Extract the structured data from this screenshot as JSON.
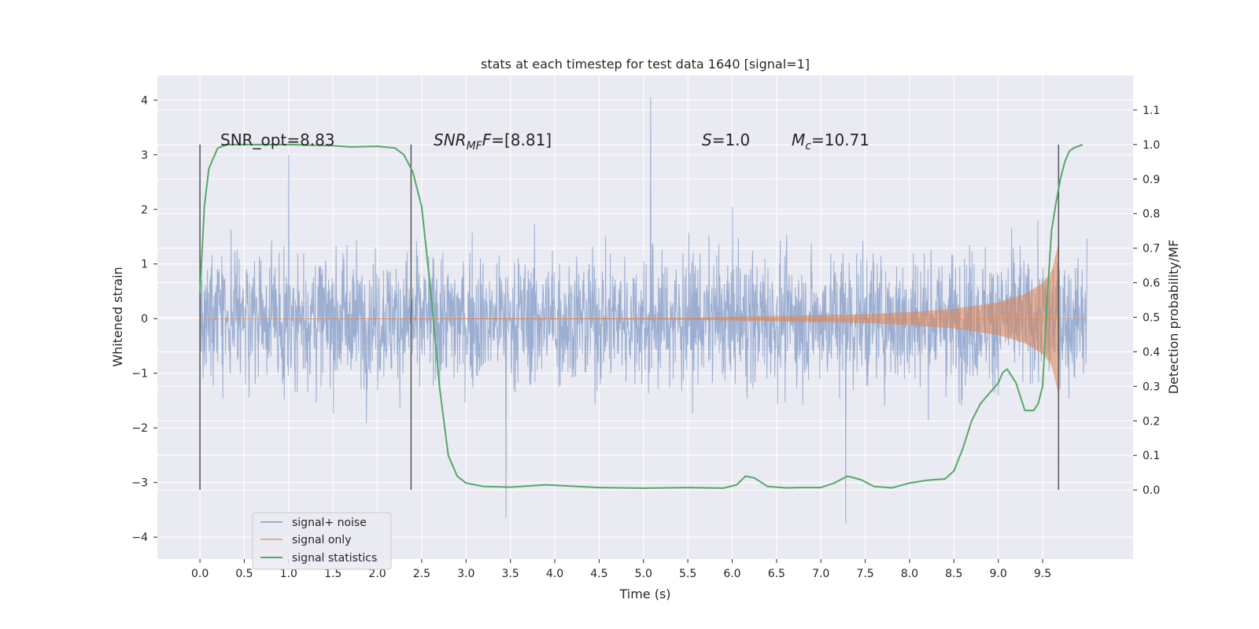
{
  "chart_data": {
    "type": "line",
    "title": "stats at each timestep for test data 1640 [signal=1]",
    "xlabel": "Time (s)",
    "ylabel_left": "Whitened strain",
    "ylabel_right": "Detection probability/MF",
    "xlim": [
      -0.48,
      10.52
    ],
    "ylim_left": [
      -4.4,
      4.45
    ],
    "ylim_right": [
      -0.2,
      1.2
    ],
    "xticks": [
      "0.0",
      "0.5",
      "1.0",
      "1.5",
      "2.0",
      "2.5",
      "3.0",
      "3.5",
      "4.0",
      "4.5",
      "5.0",
      "5.5",
      "6.0",
      "6.5",
      "7.0",
      "7.5",
      "8.0",
      "8.5",
      "9.0",
      "9.5"
    ],
    "xtick_values": [
      0,
      0.5,
      1,
      1.5,
      2,
      2.5,
      3,
      3.5,
      4,
      4.5,
      5,
      5.5,
      6,
      6.5,
      7,
      7.5,
      8,
      8.5,
      9,
      9.5
    ],
    "yticks_left": [
      "4",
      "3",
      "2",
      "1",
      "0",
      "−1",
      "−2",
      "−3",
      "−4"
    ],
    "ytick_values_left": [
      4,
      3,
      2,
      1,
      0,
      -1,
      -2,
      -3,
      -4
    ],
    "yticks_right": [
      "1.1",
      "1.0",
      "0.9",
      "0.8",
      "0.7",
      "0.6",
      "0.5",
      "0.4",
      "0.3",
      "0.2",
      "0.1",
      "0.0"
    ],
    "ytick_values_right": [
      1.1,
      1.0,
      0.9,
      0.8,
      0.7,
      0.6,
      0.5,
      0.4,
      0.3,
      0.2,
      0.1,
      0.0
    ],
    "grid": true,
    "legend_position": "lower-left",
    "annotations": {
      "snr_opt": "SNR_opt=8.83",
      "snr_mf_main": "SNR",
      "snr_mf_sub": "MF",
      "snr_mf_value": "=[8.81]",
      "s_main": "S",
      "s_value": "=1.0",
      "mc_main": "M",
      "mc_sub": "c",
      "mc_value": "=10.71"
    },
    "vertical_lines": [
      0.0,
      2.38,
      9.68
    ],
    "series": [
      {
        "name": "signal+ noise",
        "color": "#4c72b0",
        "axis": "left",
        "x_range": [
          0,
          10
        ],
        "envelope_typical": 1.3,
        "envelope_peak": 4.05,
        "description_points": [
          [
            5.08,
            4.05
          ],
          [
            7.28,
            -3.75
          ],
          [
            3.45,
            -3.65
          ],
          [
            1.0,
            3.0
          ]
        ]
      },
      {
        "name": "signal only",
        "color": "#dd8452",
        "axis": "left",
        "chirp_end": 9.68,
        "amplitude_points": [
          [
            0,
            0
          ],
          [
            5.5,
            0.02
          ],
          [
            6.5,
            0.05
          ],
          [
            7.5,
            0.08
          ],
          [
            8.0,
            0.12
          ],
          [
            8.5,
            0.18
          ],
          [
            9.0,
            0.3
          ],
          [
            9.3,
            0.45
          ],
          [
            9.5,
            0.65
          ],
          [
            9.6,
            0.85
          ],
          [
            9.68,
            1.4
          ]
        ]
      },
      {
        "name": "signal statistics",
        "color": "#55a868",
        "axis": "right",
        "x": [
          0.0,
          0.05,
          0.1,
          0.15,
          0.2,
          0.3,
          0.5,
          1.0,
          1.5,
          1.7,
          2.0,
          2.2,
          2.3,
          2.4,
          2.5,
          2.6,
          2.7,
          2.8,
          2.9,
          3.0,
          3.2,
          3.5,
          3.9,
          4.5,
          5.0,
          5.5,
          5.9,
          6.05,
          6.15,
          6.25,
          6.4,
          6.6,
          6.8,
          7.0,
          7.15,
          7.3,
          7.45,
          7.6,
          7.8,
          8.0,
          8.2,
          8.4,
          8.5,
          8.6,
          8.7,
          8.8,
          8.9,
          9.0,
          9.05,
          9.1,
          9.15,
          9.2,
          9.3,
          9.4,
          9.45,
          9.5,
          9.55,
          9.6,
          9.65,
          9.7,
          9.75,
          9.8,
          9.85,
          9.95
        ],
        "y": [
          0.57,
          0.82,
          0.93,
          0.96,
          0.99,
          1.0,
          1.0,
          1.0,
          0.997,
          0.993,
          0.995,
          0.99,
          0.97,
          0.92,
          0.82,
          0.58,
          0.3,
          0.1,
          0.04,
          0.02,
          0.01,
          0.008,
          0.015,
          0.007,
          0.005,
          0.007,
          0.005,
          0.015,
          0.04,
          0.035,
          0.01,
          0.006,
          0.007,
          0.007,
          0.02,
          0.04,
          0.03,
          0.01,
          0.006,
          0.02,
          0.028,
          0.032,
          0.055,
          0.12,
          0.2,
          0.25,
          0.28,
          0.31,
          0.34,
          0.35,
          0.33,
          0.31,
          0.23,
          0.23,
          0.25,
          0.3,
          0.55,
          0.75,
          0.83,
          0.9,
          0.95,
          0.98,
          0.99,
          1.0
        ]
      }
    ]
  }
}
